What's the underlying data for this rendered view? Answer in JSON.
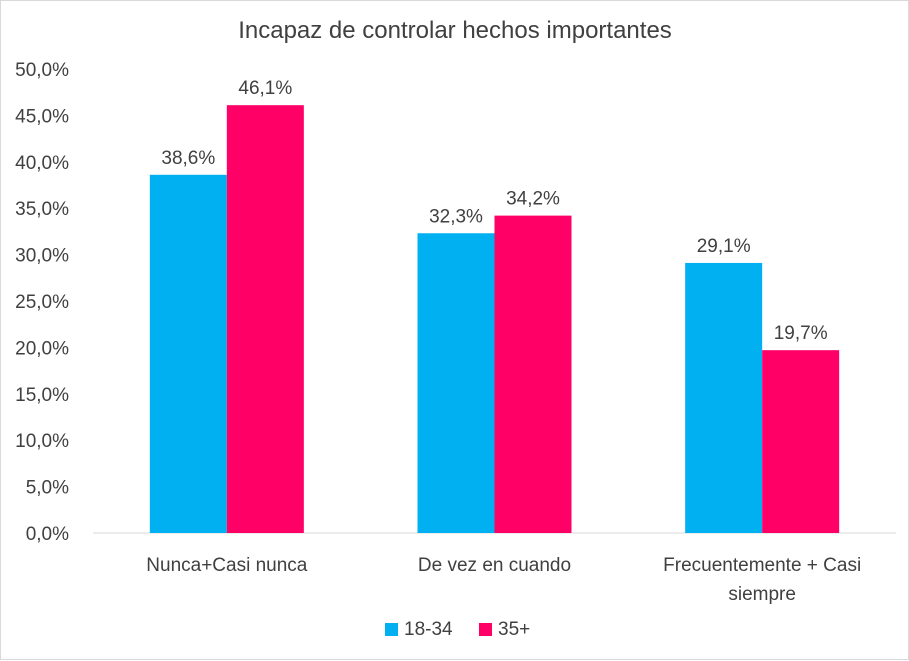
{
  "chart_data": {
    "type": "bar",
    "title": "Incapaz de controlar hechos importantes",
    "categories": [
      [
        "Nunca+Casi nunca"
      ],
      [
        "De vez en cuando"
      ],
      [
        "Frecuentemente + Casi",
        "siempre"
      ]
    ],
    "series": [
      {
        "name": "18-34",
        "color": "#00b0f0",
        "values": [
          38.6,
          32.3,
          29.1
        ],
        "labels": [
          "38,6%",
          "32,3%",
          "29,1%"
        ]
      },
      {
        "name": "35+",
        "color": "#ff0066",
        "values": [
          46.1,
          34.2,
          19.7
        ],
        "labels": [
          "46,1%",
          "34,2%",
          "19,7%"
        ]
      }
    ],
    "yticks": [
      "0,0%",
      "5,0%",
      "10,0%",
      "15,0%",
      "20,0%",
      "25,0%",
      "30,0%",
      "35,0%",
      "40,0%",
      "45,0%",
      "50,0%"
    ],
    "ylim": [
      0,
      50
    ],
    "grid": false,
    "legend_position": "bottom"
  }
}
